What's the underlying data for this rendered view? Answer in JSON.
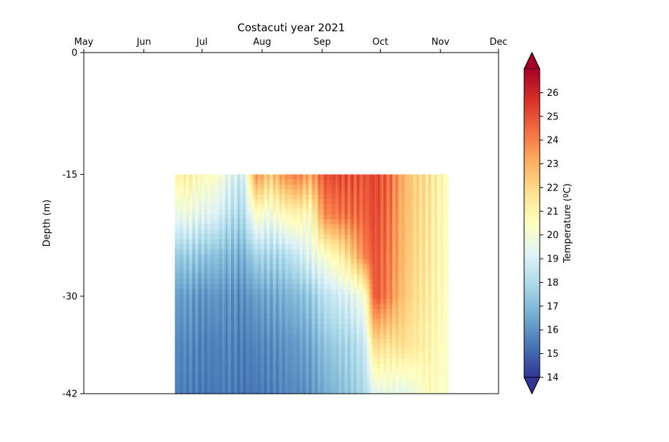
{
  "chart_data": {
    "type": "heatmap",
    "title": "Costacuti year 2021",
    "ylabel": "Depth (m)",
    "x_ticks": [
      {
        "date": "2021-05-01",
        "label": "May"
      },
      {
        "date": "2021-06-01",
        "label": "Jun"
      },
      {
        "date": "2021-07-01",
        "label": "Jul"
      },
      {
        "date": "2021-08-01",
        "label": "Aug"
      },
      {
        "date": "2021-09-01",
        "label": "Sep"
      },
      {
        "date": "2021-10-01",
        "label": "Oct"
      },
      {
        "date": "2021-11-01",
        "label": "Nov"
      },
      {
        "date": "2021-12-01",
        "label": "Dec"
      }
    ],
    "xlim": [
      "2021-05-01",
      "2021-12-01"
    ],
    "x_axis_position": "top",
    "y_ticks": [
      {
        "value": 0,
        "label": "0"
      },
      {
        "value": -15,
        "label": "-15"
      },
      {
        "value": -30,
        "label": "-30"
      },
      {
        "value": -42,
        "label": "-42"
      }
    ],
    "ylim": [
      -42,
      0
    ],
    "data_extent": {
      "x": [
        "2021-06-17",
        "2021-11-05"
      ],
      "y": [
        -42,
        -15
      ]
    },
    "colorbar": {
      "label": "Temperature (ºC)",
      "range": [
        14,
        27
      ],
      "ticks": [
        14,
        15,
        16,
        17,
        18,
        19,
        20,
        21,
        22,
        23,
        24,
        25,
        26
      ],
      "extend": "both",
      "colormap": [
        "#313695",
        "#4575b4",
        "#74add1",
        "#abd9e9",
        "#e0f3f8",
        "#ffffbf",
        "#fee090",
        "#fdae61",
        "#f46d43",
        "#d73027",
        "#a50026"
      ]
    },
    "profiles": [
      {
        "date": "2021-06-17",
        "depth": [
          -15,
          -20,
          -25,
          -30,
          -36,
          -42
        ],
        "temperature": [
          21.0,
          19.6,
          17.4,
          16.2,
          15.7,
          15.5
        ]
      },
      {
        "date": "2021-06-24",
        "depth": [
          -15,
          -20,
          -25,
          -30,
          -36,
          -42
        ],
        "temperature": [
          21.2,
          19.7,
          17.6,
          16.3,
          15.8,
          15.5
        ]
      },
      {
        "date": "2021-07-01",
        "depth": [
          -15,
          -20,
          -25,
          -30,
          -36,
          -42
        ],
        "temperature": [
          20.6,
          19.3,
          17.3,
          16.0,
          15.6,
          15.4
        ]
      },
      {
        "date": "2021-07-08",
        "depth": [
          -15,
          -20,
          -25,
          -30,
          -36,
          -42
        ],
        "temperature": [
          20.4,
          19.1,
          17.2,
          16.1,
          15.6,
          15.4
        ]
      },
      {
        "date": "2021-07-15",
        "depth": [
          -15,
          -20,
          -25,
          -30,
          -36,
          -42
        ],
        "temperature": [
          19.4,
          18.3,
          16.9,
          16.0,
          15.7,
          15.5
        ]
      },
      {
        "date": "2021-07-22",
        "depth": [
          -15,
          -20,
          -25,
          -30,
          -36,
          -42
        ],
        "temperature": [
          18.6,
          17.9,
          16.7,
          15.9,
          15.5,
          15.3
        ]
      },
      {
        "date": "2021-07-29",
        "depth": [
          -15,
          -20,
          -25,
          -30,
          -36,
          -42
        ],
        "temperature": [
          23.8,
          20.4,
          17.8,
          16.3,
          15.7,
          15.4
        ]
      },
      {
        "date": "2021-08-05",
        "depth": [
          -15,
          -20,
          -25,
          -30,
          -36,
          -42
        ],
        "temperature": [
          22.4,
          19.8,
          17.8,
          16.5,
          15.8,
          15.5
        ]
      },
      {
        "date": "2021-08-12",
        "depth": [
          -15,
          -20,
          -25,
          -30,
          -36,
          -42
        ],
        "temperature": [
          23.6,
          20.6,
          18.0,
          16.7,
          16.0,
          15.7
        ]
      },
      {
        "date": "2021-08-19",
        "depth": [
          -15,
          -20,
          -25,
          -30,
          -36,
          -42
        ],
        "temperature": [
          24.2,
          21.0,
          18.6,
          17.0,
          16.2,
          15.8
        ]
      },
      {
        "date": "2021-08-26",
        "depth": [
          -15,
          -20,
          -25,
          -30,
          -36,
          -42
        ],
        "temperature": [
          23.2,
          20.5,
          19.4,
          17.4,
          16.5,
          16.0
        ]
      },
      {
        "date": "2021-09-02",
        "depth": [
          -15,
          -20,
          -25,
          -30,
          -36,
          -42
        ],
        "temperature": [
          25.0,
          23.8,
          20.2,
          18.3,
          17.2,
          16.6
        ]
      },
      {
        "date": "2021-09-09",
        "depth": [
          -15,
          -20,
          -25,
          -30,
          -36,
          -42
        ],
        "temperature": [
          25.2,
          24.2,
          21.0,
          18.8,
          17.6,
          17.0
        ]
      },
      {
        "date": "2021-09-16",
        "depth": [
          -15,
          -20,
          -25,
          -30,
          -36,
          -42
        ],
        "temperature": [
          25.0,
          24.4,
          22.2,
          19.2,
          17.9,
          17.4
        ]
      },
      {
        "date": "2021-09-23",
        "depth": [
          -15,
          -20,
          -25,
          -30,
          -36,
          -42
        ],
        "temperature": [
          24.9,
          24.6,
          24.0,
          20.2,
          18.6,
          18.0
        ]
      },
      {
        "date": "2021-09-28",
        "depth": [
          -15,
          -20,
          -25,
          -30,
          -36,
          -42
        ],
        "temperature": [
          25.3,
          25.2,
          25.0,
          25.0,
          22.0,
          19.4
        ]
      },
      {
        "date": "2021-10-05",
        "depth": [
          -15,
          -20,
          -25,
          -30,
          -36,
          -42
        ],
        "temperature": [
          24.6,
          24.4,
          24.2,
          24.0,
          21.6,
          19.6
        ]
      },
      {
        "date": "2021-10-12",
        "depth": [
          -15,
          -20,
          -25,
          -30,
          -36,
          -42
        ],
        "temperature": [
          23.2,
          23.0,
          22.9,
          22.7,
          21.8,
          19.4
        ]
      },
      {
        "date": "2021-10-19",
        "depth": [
          -15,
          -20,
          -25,
          -30,
          -36,
          -42
        ],
        "temperature": [
          22.2,
          22.1,
          22.0,
          21.8,
          21.4,
          19.8
        ]
      },
      {
        "date": "2021-10-26",
        "depth": [
          -15,
          -20,
          -25,
          -30,
          -36,
          -42
        ],
        "temperature": [
          21.6,
          21.5,
          21.4,
          21.3,
          21.0,
          20.6
        ]
      },
      {
        "date": "2021-11-05",
        "depth": [
          -15,
          -20,
          -25,
          -30,
          -36,
          -42
        ],
        "temperature": [
          20.6,
          20.5,
          20.5,
          20.4,
          20.3,
          20.2
        ]
      }
    ]
  }
}
